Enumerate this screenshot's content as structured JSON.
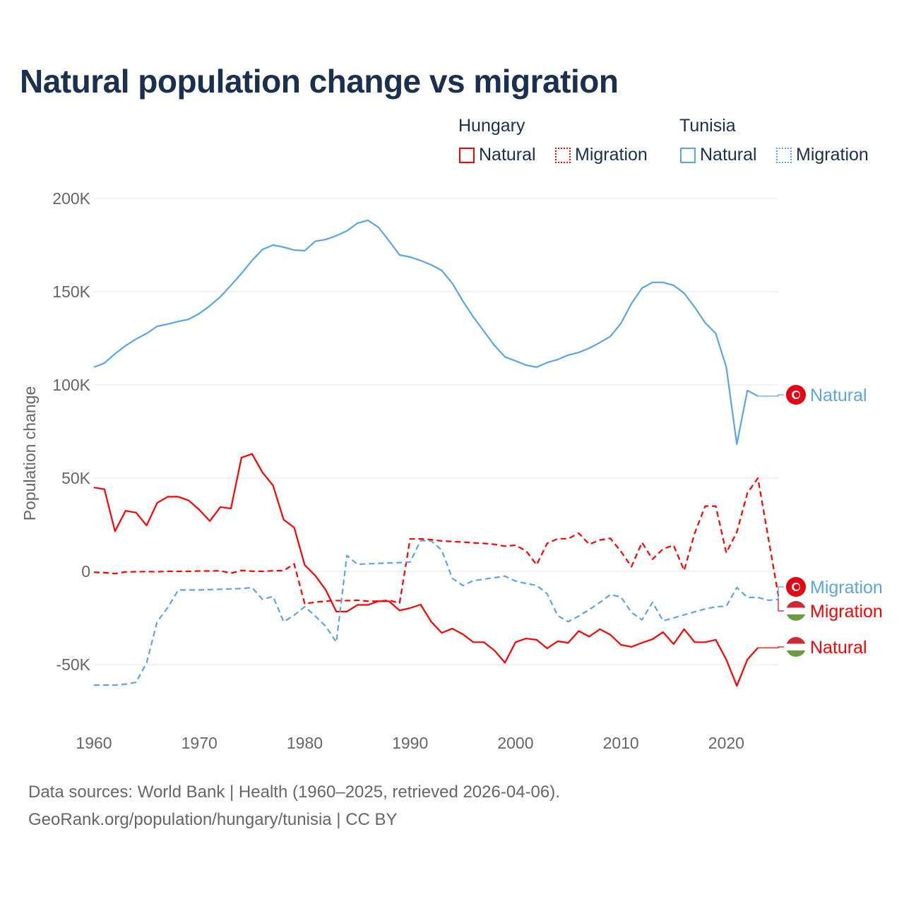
{
  "title": "Natural population change vs migration",
  "legend": {
    "groups": [
      {
        "name": "Hungary",
        "items": [
          "Natural",
          "Migration"
        ]
      },
      {
        "name": "Tunisia",
        "items": [
          "Natural",
          "Migration"
        ]
      }
    ]
  },
  "footer": {
    "line1": "Data sources: World Bank | Health (1960–2025, retrieved 2026-04-06).",
    "line2": "GeoRank.org/population/hungary/tunisia | CC BY"
  },
  "colors": {
    "hungary": "#ff0000",
    "tunisia": "#5ba4ea",
    "grid": "#e6e6e6"
  },
  "chart_data": {
    "type": "line",
    "title": "Natural population change vs migration",
    "xlabel": "",
    "ylabel": "Population change",
    "xlim": [
      1960,
      2025
    ],
    "ylim": [
      -65000,
      205000
    ],
    "xticks": [
      1960,
      1970,
      1980,
      1990,
      2000,
      2010,
      2020
    ],
    "xtick_labels": [
      "1960",
      "1970",
      "1980",
      "1990",
      "2000",
      "2010",
      "2020"
    ],
    "yticks": [
      200000,
      150000,
      100000,
      50000,
      0,
      -50000
    ],
    "ytick_labels": [
      "200K",
      "150K",
      "100K",
      "50K",
      "0",
      "-50K"
    ],
    "grid": true,
    "legend_position": "top-right",
    "series": [
      {
        "name": "Hungary Natural",
        "label": "Natural",
        "country": "hungary",
        "dashed": false,
        "start": 1960,
        "values": [
          45000,
          44000,
          21500,
          32500,
          31500,
          24600,
          36700,
          40000,
          40000,
          38000,
          33000,
          27000,
          34500,
          33700,
          61000,
          63000,
          53000,
          46000,
          27700,
          23500,
          3400,
          -2300,
          -10000,
          -21600,
          -21600,
          -18000,
          -18000,
          -16000,
          -16000,
          -21000,
          -19700,
          -17800,
          -27000,
          -33000,
          -30700,
          -33700,
          -38000,
          -38000,
          -42400,
          -49000,
          -38000,
          -36000,
          -36700,
          -41300,
          -37500,
          -38300,
          -32000,
          -35000,
          -31000,
          -34000,
          -39400,
          -40500,
          -38300,
          -36400,
          -32600,
          -39000,
          -31000,
          -38000,
          -38000,
          -36700,
          -47300,
          -61400,
          -47300,
          -41000
        ]
      },
      {
        "name": "Hungary Migration",
        "label": "Migration",
        "country": "hungary",
        "dashed": true,
        "start": 1960,
        "values": [
          -500,
          -700,
          -1200,
          -300,
          -200,
          -100,
          -200,
          0,
          0,
          0,
          200,
          200,
          300,
          -1000,
          500,
          100,
          0,
          300,
          400,
          4000,
          -17400,
          -16500,
          -16000,
          -15700,
          -15700,
          -15500,
          -16000,
          -16000,
          -15500,
          -17000,
          17400,
          17400,
          17000,
          16300,
          16000,
          15700,
          15300,
          15000,
          14500,
          13500,
          14000,
          11000,
          3500,
          15000,
          17500,
          17500,
          20500,
          14500,
          16800,
          17700,
          10700,
          2500,
          15500,
          6500,
          12000,
          14000,
          500,
          20500,
          35000,
          35000,
          10000,
          21000,
          42000,
          50000,
          17500,
          -15000
        ]
      },
      {
        "name": "Tunisia Natural",
        "label": "Natural",
        "country": "tunisia",
        "dashed": false,
        "start": 1960,
        "values": [
          109500,
          111700,
          116700,
          121000,
          124600,
          127600,
          131400,
          132600,
          134000,
          135200,
          138300,
          142400,
          147300,
          153400,
          159800,
          166700,
          172700,
          175000,
          173900,
          172300,
          172000,
          177000,
          178000,
          180000,
          182600,
          186700,
          188300,
          184500,
          177300,
          169700,
          168600,
          166700,
          164400,
          161400,
          154500,
          145000,
          136400,
          128800,
          121200,
          115000,
          112900,
          110600,
          109500,
          112000,
          113600,
          116000,
          117400,
          119700,
          122700,
          126000,
          133000,
          143600,
          151900,
          155000,
          155000,
          153400,
          149200,
          141700,
          133300,
          127600,
          109500,
          68200,
          97000,
          94000
        ]
      },
      {
        "name": "Tunisia Migration",
        "label": "Migration",
        "country": "tunisia",
        "dashed": true,
        "start": 1960,
        "values": [
          -61000,
          -61000,
          -61000,
          -60500,
          -59500,
          -49000,
          -27000,
          -19500,
          -10000,
          -10000,
          -10000,
          -9800,
          -9600,
          -9400,
          -9200,
          -8700,
          -15000,
          -13500,
          -27000,
          -23500,
          -19000,
          -24000,
          -29500,
          -38000,
          8500,
          3800,
          4000,
          4300,
          4500,
          4700,
          5000,
          16500,
          16300,
          11400,
          -3700,
          -7600,
          -5000,
          -4200,
          -3400,
          -2600,
          -5200,
          -6500,
          -7500,
          -12000,
          -23700,
          -27000,
          -24000,
          -20500,
          -16700,
          -12500,
          -13700,
          -22000,
          -26000,
          -16600,
          -26500,
          -25000,
          -23300,
          -21700,
          -20200,
          -19000,
          -18700,
          -8700,
          -14000,
          -14000,
          -15500,
          -15000
        ]
      }
    ]
  }
}
